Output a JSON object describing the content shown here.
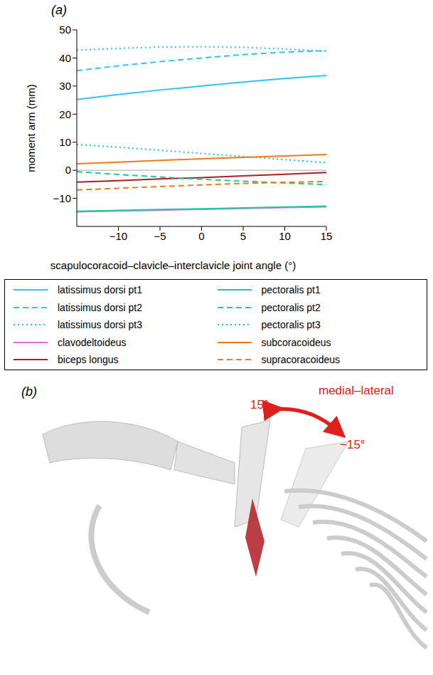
{
  "chart_data": {
    "type": "line",
    "panel": "(a)",
    "x_label": "scapulocoracoid–clavicle–interclavicle joint angle (°)",
    "y_label": "moment arm (mm)",
    "x": [
      -15,
      -10,
      -5,
      0,
      5,
      10,
      15
    ],
    "xlim": [
      -15,
      15
    ],
    "xticks": [
      {
        "value": -10,
        "label": "−10"
      },
      {
        "value": -5,
        "label": "−5"
      },
      0,
      5,
      10,
      15
    ],
    "ylim": [
      -20,
      50
    ],
    "yticks": [
      {
        "value": -10,
        "label": "−10"
      },
      0,
      10,
      20,
      30,
      40,
      50
    ],
    "grid": false,
    "legend": "bottom",
    "series": [
      {
        "name": "latissimus dorsi pt1",
        "color": "#2ec4f0",
        "line_style": "solid",
        "values": [
          25.2,
          27,
          28.6,
          30,
          31.4,
          32.7,
          33.8
        ]
      },
      {
        "name": "latissimus dorsi pt2",
        "color": "#2ec4f0",
        "line_style": "dashed",
        "values": [
          35.5,
          37.2,
          38.7,
          40,
          41.2,
          42.1,
          42.6
        ]
      },
      {
        "name": "latissimus dorsi pt3",
        "color": "#2ec4f0",
        "line_style": "dotted",
        "values": [
          42.8,
          43.4,
          43.9,
          44,
          43.8,
          43.2,
          42.4
        ]
      },
      {
        "name": "clavodeltoideus",
        "color": "#d86ee0",
        "line_style": "solid",
        "values": [
          -14.8,
          -14.5,
          -14.2,
          -13.9,
          -13.6,
          -13.3,
          -13
        ]
      },
      {
        "name": "biceps longus",
        "color": "#b01c24",
        "line_style": "solid",
        "values": [
          -4.2,
          -3.7,
          -3.1,
          -2.6,
          -2,
          -1.4,
          -0.8
        ]
      },
      {
        "name": "pectoralis pt1",
        "color": "#1fc9a5",
        "line_style": "solid",
        "values": [
          -14.6,
          -14.3,
          -14,
          -13.7,
          -13.4,
          -13.1,
          -12.8
        ]
      },
      {
        "name": "pectoralis pt2",
        "color": "#1fc9a5",
        "line_style": "dashed",
        "values": [
          -0.5,
          -1.5,
          -2.4,
          -3.2,
          -3.9,
          -4.5,
          -5.1
        ]
      },
      {
        "name": "pectoralis pt3",
        "color": "#1fc9a5",
        "line_style": "dotted",
        "values": [
          9.2,
          8.2,
          7.1,
          6,
          4.9,
          3.8,
          2.7
        ]
      },
      {
        "name": "subcoracoideus",
        "color": "#f07a1c",
        "line_style": "solid",
        "values": [
          2.3,
          2.9,
          3.5,
          4.1,
          4.6,
          5.1,
          5.6
        ]
      },
      {
        "name": "supracoracoideus",
        "color": "#f07a1c",
        "line_style": "dashed",
        "values": [
          -7,
          -6.4,
          -5.8,
          -5.2,
          -4.7,
          -4.3,
          -4
        ]
      }
    ]
  },
  "figure_b": {
    "panel": "(b)",
    "annotations": [
      "medial–lateral",
      "15°",
      "−15°"
    ]
  }
}
